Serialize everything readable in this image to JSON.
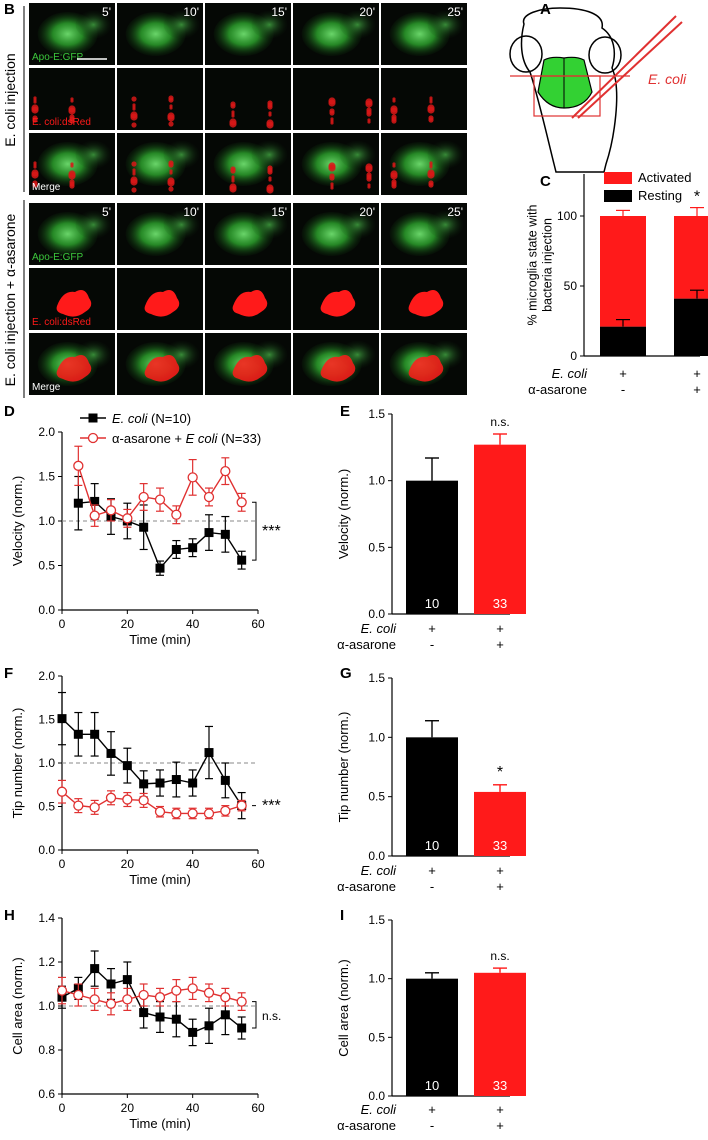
{
  "panel_letters": {
    "A": "A",
    "B": "B",
    "C": "C",
    "D": "D",
    "E": "E",
    "F": "F",
    "G": "G",
    "H": "H",
    "I": "I"
  },
  "panel_b": {
    "time_labels": [
      "5'",
      "10'",
      "15'",
      "20'",
      "25'"
    ],
    "group1_label": "E. coli injection",
    "group2_label": "E. coli injection + α-asarone",
    "channel_gfp": "Apo-E:GFP",
    "channel_dsred": "E. coli:dsRed",
    "channel_merge": "Merge"
  },
  "panel_a": {
    "annotation": "E. coli"
  },
  "colors": {
    "red": "#ff1a1a",
    "black": "#000000",
    "gfp_green": "#3cc83c",
    "mid_red": "#e03131"
  },
  "conditions": {
    "row1_label": "E. coli",
    "row2_label": "α-asarone",
    "row1_values": [
      "+",
      "+"
    ],
    "row2_values": [
      "-",
      "+"
    ]
  },
  "chart_data": [
    {
      "id": "C",
      "type": "bar",
      "ylabel": "% microglia state with bacteria injection",
      "ylim": [
        0,
        130
      ],
      "yticks": [
        0,
        50,
        100
      ],
      "categories": [
        "E. coli",
        "E. coli + α-asarone"
      ],
      "series": [
        {
          "name": "Resting",
          "values": [
            21,
            41
          ],
          "errors": [
            5,
            6
          ],
          "color": "#000000"
        },
        {
          "name": "Activated",
          "values": [
            79,
            59
          ],
          "errors": [
            4,
            6
          ],
          "color": "#ff1a1a"
        }
      ],
      "legend": [
        "Activated",
        "Resting"
      ],
      "annotations": [
        "",
        "*"
      ]
    },
    {
      "id": "D",
      "type": "line",
      "xlabel": "Time (min)",
      "ylabel": "Velocity (norm.)",
      "xlim": [
        0,
        60
      ],
      "ylim": [
        0,
        2.0
      ],
      "xticks": [
        0,
        20,
        40,
        60
      ],
      "yticks": [
        0.0,
        0.5,
        1.0,
        1.5,
        2.0
      ],
      "yticklabels": [
        "0.0",
        "0.5",
        "1.0",
        "1.5",
        "2.0"
      ],
      "reference_line": 1.0,
      "significance": "***",
      "legend_entries": [
        {
          "italic": "E. coli",
          "suffix": " (N=10)"
        },
        {
          "prefix": "α-asarone + ",
          "italic": "E coli",
          "suffix": " (N=33)"
        }
      ],
      "x": [
        5,
        10,
        15,
        20,
        25,
        30,
        35,
        40,
        45,
        50,
        55
      ],
      "series": [
        {
          "name": "E. coli (N=10)",
          "values": [
            1.2,
            1.22,
            1.05,
            1.0,
            0.93,
            0.47,
            0.68,
            0.7,
            0.87,
            0.85,
            0.56
          ],
          "errors": [
            0.3,
            0.2,
            0.2,
            0.2,
            0.25,
            0.08,
            0.1,
            0.1,
            0.2,
            0.2,
            0.1
          ],
          "color": "#000000",
          "marker": "square"
        },
        {
          "name": "α-asarone + E coli (N=33)",
          "values": [
            1.62,
            1.06,
            1.12,
            1.03,
            1.27,
            1.24,
            1.07,
            1.49,
            1.27,
            1.56,
            1.21
          ],
          "errors": [
            0.22,
            0.12,
            0.12,
            0.1,
            0.15,
            0.13,
            0.1,
            0.2,
            0.1,
            0.15,
            0.1
          ],
          "color": "#e03131",
          "marker": "open-circle"
        }
      ]
    },
    {
      "id": "E",
      "type": "bar",
      "ylabel": "Velocity (norm.)",
      "ylim": [
        0,
        1.5
      ],
      "yticks": [
        0.0,
        0.5,
        1.0,
        1.5
      ],
      "yticklabels": [
        "0.0",
        "0.5",
        "1.0",
        "1.5"
      ],
      "categories": [
        "E. coli",
        "α-asarone + E. coli"
      ],
      "values": [
        1.0,
        1.27
      ],
      "errors": [
        0.17,
        0.08
      ],
      "colors": [
        "#000000",
        "#ff1a1a"
      ],
      "n_labels": [
        "10",
        "33"
      ],
      "annotations": [
        "",
        "n.s."
      ]
    },
    {
      "id": "F",
      "type": "line",
      "xlabel": "Time (min)",
      "ylabel": "Tip number (norm.)",
      "xlim": [
        0,
        60
      ],
      "ylim": [
        0,
        2.0
      ],
      "xticks": [
        0,
        20,
        40,
        60
      ],
      "yticks": [
        0.0,
        0.5,
        1.0,
        1.5,
        2.0
      ],
      "yticklabels": [
        "0.0",
        "0.5",
        "1.0",
        "1.5",
        "2.0"
      ],
      "reference_line": 1.0,
      "significance": "***",
      "x": [
        0,
        5,
        10,
        15,
        20,
        25,
        30,
        35,
        40,
        45,
        50,
        55
      ],
      "series": [
        {
          "name": "E. coli",
          "values": [
            1.51,
            1.33,
            1.33,
            1.11,
            0.97,
            0.76,
            0.77,
            0.81,
            0.77,
            1.12,
            0.8,
            0.51
          ],
          "errors": [
            0.3,
            0.25,
            0.25,
            0.25,
            0.2,
            0.15,
            0.15,
            0.2,
            0.15,
            0.3,
            0.2,
            0.15
          ],
          "color": "#000000",
          "marker": "square"
        },
        {
          "name": "α-asarone + E coli",
          "values": [
            0.67,
            0.51,
            0.49,
            0.6,
            0.58,
            0.57,
            0.44,
            0.42,
            0.42,
            0.42,
            0.45,
            0.51
          ],
          "errors": [
            0.13,
            0.08,
            0.08,
            0.08,
            0.08,
            0.08,
            0.06,
            0.06,
            0.06,
            0.06,
            0.06,
            0.06
          ],
          "color": "#e03131",
          "marker": "open-circle"
        }
      ]
    },
    {
      "id": "G",
      "type": "bar",
      "ylabel": "Tip number (norm.)",
      "ylim": [
        0,
        1.5
      ],
      "yticks": [
        0.0,
        0.5,
        1.0,
        1.5
      ],
      "yticklabels": [
        "0.0",
        "0.5",
        "1.0",
        "1.5"
      ],
      "categories": [
        "E. coli",
        "α-asarone + E. coli"
      ],
      "values": [
        1.0,
        0.54
      ],
      "errors": [
        0.14,
        0.06
      ],
      "colors": [
        "#000000",
        "#ff1a1a"
      ],
      "n_labels": [
        "10",
        "33"
      ],
      "annotations": [
        "",
        "*"
      ]
    },
    {
      "id": "H",
      "type": "line",
      "xlabel": "Time (min)",
      "ylabel": "Cell area (norm.)",
      "xlim": [
        0,
        60
      ],
      "ylim": [
        0.6,
        1.4
      ],
      "xticks": [
        0,
        20,
        40,
        60
      ],
      "yticks": [
        0.6,
        0.8,
        1.0,
        1.2,
        1.4
      ],
      "yticklabels": [
        "0.6",
        "0.8",
        "1.0",
        "1.2",
        "1.4"
      ],
      "reference_line": 1.0,
      "significance": "n.s.",
      "x": [
        0,
        5,
        10,
        15,
        20,
        25,
        30,
        35,
        40,
        45,
        50,
        55
      ],
      "series": [
        {
          "name": "E. coli",
          "values": [
            1.04,
            1.08,
            1.17,
            1.1,
            1.12,
            0.97,
            0.95,
            0.94,
            0.88,
            0.91,
            0.96,
            0.9
          ],
          "errors": [
            0.05,
            0.05,
            0.08,
            0.07,
            0.08,
            0.07,
            0.07,
            0.08,
            0.06,
            0.08,
            0.09,
            0.05
          ],
          "color": "#000000",
          "marker": "square"
        },
        {
          "name": "α-asarone + E coli",
          "values": [
            1.07,
            1.05,
            1.03,
            1.01,
            1.03,
            1.05,
            1.04,
            1.07,
            1.08,
            1.06,
            1.04,
            1.02
          ],
          "errors": [
            0.06,
            0.05,
            0.05,
            0.05,
            0.05,
            0.05,
            0.04,
            0.05,
            0.05,
            0.04,
            0.04,
            0.04
          ],
          "color": "#e03131",
          "marker": "open-circle"
        }
      ]
    },
    {
      "id": "I",
      "type": "bar",
      "ylabel": "Cell area (norm.)",
      "ylim": [
        0,
        1.5
      ],
      "yticks": [
        0.0,
        0.5,
        1.0,
        1.5
      ],
      "yticklabels": [
        "0.0",
        "0.5",
        "1.0",
        "1.5"
      ],
      "categories": [
        "E. coli",
        "α-asarone + E. coli"
      ],
      "values": [
        1.0,
        1.05
      ],
      "errors": [
        0.05,
        0.04
      ],
      "colors": [
        "#000000",
        "#ff1a1a"
      ],
      "n_labels": [
        "10",
        "33"
      ],
      "annotations": [
        "",
        "n.s."
      ]
    }
  ]
}
